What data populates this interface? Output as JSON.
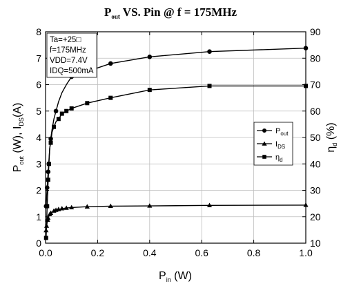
{
  "chart_data": {
    "type": "line",
    "title": {
      "main": "P",
      "sub": "out",
      "rest": " VS. Pin @ f = 175MHz"
    },
    "xlabel": {
      "main": "P",
      "sub": "in",
      "rest": " (W)"
    },
    "ylabel_left": {
      "p": "P",
      "p_sub": "out",
      "mid": " (W), I",
      "i_sub": "DS",
      "end": "(A)"
    },
    "ylabel_right": {
      "main": "η",
      "sub": "d",
      "rest": " (%)"
    },
    "xlim": [
      0,
      1.0
    ],
    "ylim_left": [
      0,
      8
    ],
    "ylim_right": [
      10,
      90
    ],
    "x_ticks": [
      "0.0",
      "0.2",
      "0.4",
      "0.6",
      "0.8",
      "1.0"
    ],
    "y_left_ticks": [
      "0",
      "1",
      "2",
      "3",
      "4",
      "5",
      "6",
      "7",
      "8"
    ],
    "y_right_ticks": [
      "10",
      "20",
      "30",
      "40",
      "50",
      "60",
      "70",
      "80",
      "90"
    ],
    "grid": true,
    "legend_placement": "right-middle",
    "conditions": [
      "Ta=+25□",
      "f=175MHz",
      "VDD=7.4V",
      "IDQ=500mA"
    ],
    "series": [
      {
        "key": "pout",
        "label": {
          "main": "P",
          "sub": "out"
        },
        "axis": "left",
        "marker": "circle",
        "x": [
          0.002,
          0.004,
          0.006,
          0.008,
          0.01,
          0.013,
          0.016,
          0.02,
          0.025,
          0.032,
          0.04,
          0.05,
          0.063,
          0.08,
          0.1,
          0.25,
          0.4,
          0.63,
          1.0
        ],
        "y": [
          1.4,
          1.75,
          2.1,
          2.4,
          2.7,
          3.15,
          3.55,
          3.95,
          4.3,
          4.7,
          5.0,
          5.35,
          5.7,
          6.0,
          6.3,
          6.8,
          7.05,
          7.25,
          7.38
        ],
        "marker_indices": [
          0,
          2,
          4,
          7,
          10,
          14,
          15,
          16,
          17,
          18
        ]
      },
      {
        "key": "ids",
        "label": {
          "main": "I",
          "sub": "DS"
        },
        "axis": "left",
        "marker": "triangle",
        "x": [
          0.002,
          0.004,
          0.006,
          0.008,
          0.01,
          0.013,
          0.016,
          0.02,
          0.025,
          0.032,
          0.04,
          0.05,
          0.063,
          0.08,
          0.1,
          0.16,
          0.25,
          0.4,
          0.63,
          1.0
        ],
        "y": [
          0.48,
          0.65,
          0.78,
          0.88,
          0.95,
          1.03,
          1.09,
          1.14,
          1.18,
          1.22,
          1.25,
          1.28,
          1.31,
          1.33,
          1.35,
          1.38,
          1.4,
          1.41,
          1.43,
          1.44
        ],
        "marker_indices": [
          0,
          1,
          3,
          4,
          6,
          7,
          9,
          10,
          11,
          12,
          13,
          14,
          15,
          16,
          17,
          18,
          19
        ]
      },
      {
        "key": "eta",
        "label": {
          "main": "η",
          "sub": "d"
        },
        "axis": "right",
        "marker": "square",
        "x": [
          0.002,
          0.004,
          0.006,
          0.008,
          0.01,
          0.013,
          0.016,
          0.02,
          0.025,
          0.032,
          0.04,
          0.05,
          0.063,
          0.08,
          0.1,
          0.16,
          0.25,
          0.4,
          0.63,
          1.0
        ],
        "y": [
          12,
          17,
          24,
          28,
          34,
          40,
          46,
          48,
          52,
          54,
          56,
          57,
          59,
          60,
          61,
          63,
          65,
          68,
          69.5,
          69.5
        ],
        "marker_indices": [
          0,
          2,
          4,
          5,
          7,
          9,
          11,
          12,
          13,
          14,
          15,
          16,
          17,
          18,
          19
        ]
      }
    ]
  }
}
